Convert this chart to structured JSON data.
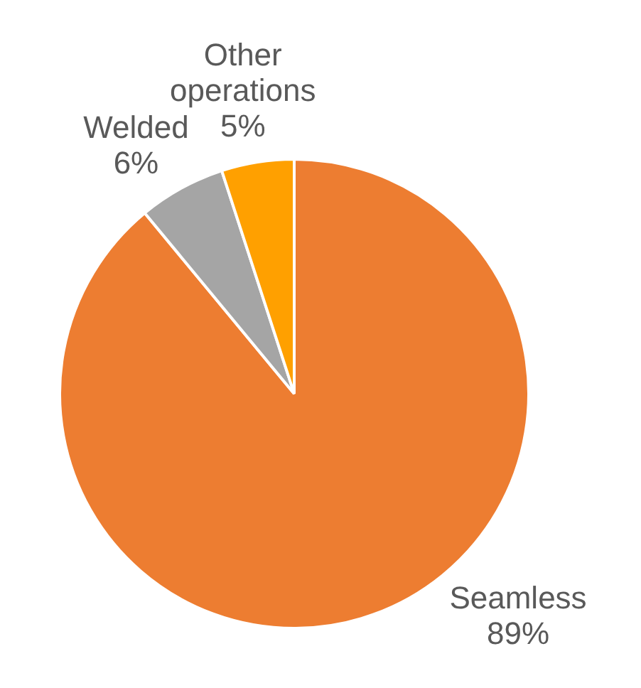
{
  "chart_data": {
    "type": "pie",
    "categories": [
      "Seamless",
      "Welded",
      "Other operations"
    ],
    "values": [
      89,
      6,
      5
    ],
    "colors": [
      "#ed7d31",
      "#a5a5a5",
      "#ffa000"
    ],
    "value_labels": [
      "89%",
      "6%",
      "5%"
    ]
  }
}
